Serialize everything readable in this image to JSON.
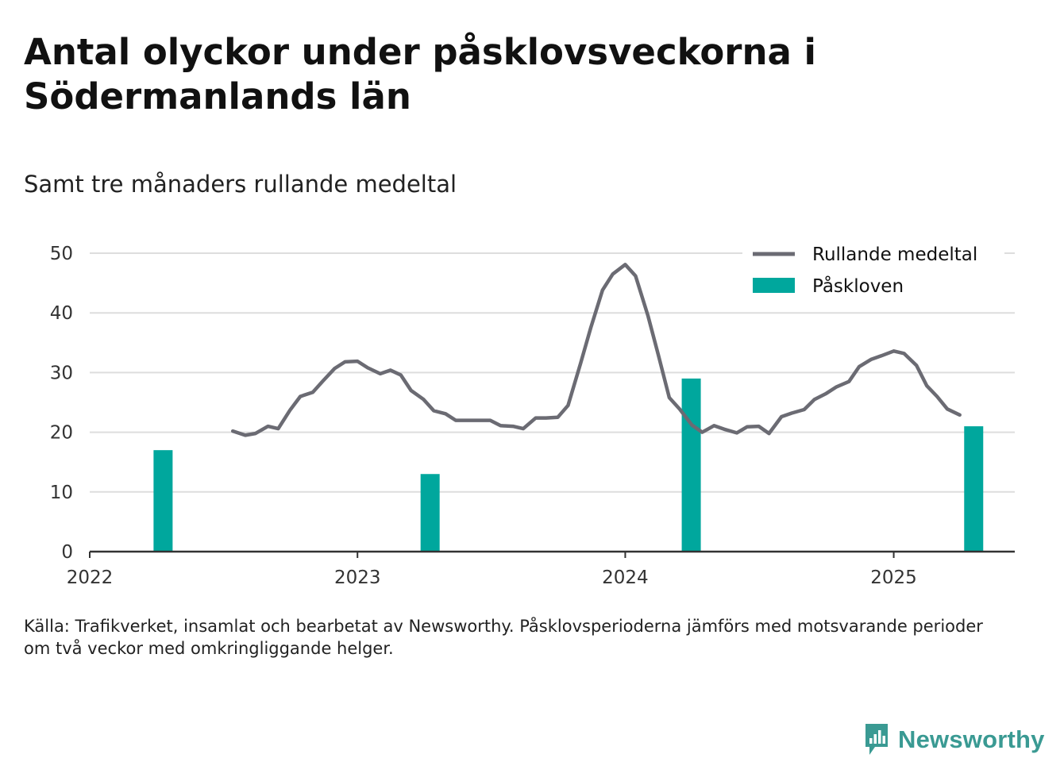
{
  "title": "Antal olyckor under påsklovsveckorna i Södermanlands län",
  "subtitle": "Samt tre månaders rullande medeltal",
  "source_lines": [
    "Källa: Trafikverket, insamlat och bearbetat av Newsworthy. Påsklovsperioderna jämförs med motsvarande perioder",
    "om två veckor med omkringliggande helger."
  ],
  "logo_text": "Newsworthy",
  "colors": {
    "line": "#6b6b73",
    "bar": "#00a79d",
    "grid": "#dddddd",
    "axis": "#333333",
    "logo": "#3a9a93"
  },
  "chart_data": {
    "type": "bar+line",
    "x_axis": {
      "type": "time",
      "range": [
        "2022-01-01",
        "2025-06-15"
      ],
      "ticks": [
        "2022",
        "2023",
        "2024",
        "2025"
      ]
    },
    "y_axis": {
      "range": [
        0,
        50
      ],
      "ticks": [
        0,
        10,
        20,
        30,
        40,
        50
      ]
    },
    "grid": true,
    "legend_position": "top-right",
    "legend": [
      {
        "label": "Rullande medeltal",
        "kind": "line"
      },
      {
        "label": "Påskloven",
        "kind": "bar"
      }
    ],
    "series": [
      {
        "name": "Påskloven",
        "type": "bar",
        "points": [
          {
            "x": "2022-04-11",
            "y": 17
          },
          {
            "x": "2023-04-10",
            "y": 13
          },
          {
            "x": "2024-03-31",
            "y": 29
          },
          {
            "x": "2025-04-20",
            "y": 21
          }
        ]
      },
      {
        "name": "Rullande medeltal",
        "type": "line",
        "points": [
          [
            "2022-07-15",
            20.2
          ],
          [
            "2022-08-01",
            19.5
          ],
          [
            "2022-08-15",
            19.8
          ],
          [
            "2022-09-01",
            21.0
          ],
          [
            "2022-09-15",
            20.6
          ],
          [
            "2022-10-01",
            23.7
          ],
          [
            "2022-10-15",
            26.0
          ],
          [
            "2022-11-01",
            26.7
          ],
          [
            "2022-11-15",
            28.6
          ],
          [
            "2022-12-01",
            30.7
          ],
          [
            "2022-12-15",
            31.8
          ],
          [
            "2023-01-01",
            31.9
          ],
          [
            "2023-01-15",
            30.8
          ],
          [
            "2023-02-01",
            29.8
          ],
          [
            "2023-02-15",
            30.4
          ],
          [
            "2023-03-01",
            29.6
          ],
          [
            "2023-03-15",
            27.0
          ],
          [
            "2023-04-01",
            25.5
          ],
          [
            "2023-04-15",
            23.6
          ],
          [
            "2023-05-01",
            23.1
          ],
          [
            "2023-05-15",
            22.0
          ],
          [
            "2023-06-01",
            22.0
          ],
          [
            "2023-06-15",
            22.0
          ],
          [
            "2023-07-01",
            22.0
          ],
          [
            "2023-07-15",
            21.1
          ],
          [
            "2023-08-01",
            21.0
          ],
          [
            "2023-08-15",
            20.6
          ],
          [
            "2023-09-01",
            22.4
          ],
          [
            "2023-09-15",
            22.4
          ],
          [
            "2023-10-01",
            22.5
          ],
          [
            "2023-10-15",
            24.5
          ],
          [
            "2023-11-01",
            31.5
          ],
          [
            "2023-11-15",
            37.5
          ],
          [
            "2023-12-01",
            43.8
          ],
          [
            "2023-12-15",
            46.5
          ],
          [
            "2024-01-01",
            48.1
          ],
          [
            "2024-01-15",
            46.2
          ],
          [
            "2024-02-01",
            39.5
          ],
          [
            "2024-02-15",
            33.0
          ],
          [
            "2024-03-01",
            25.8
          ],
          [
            "2024-03-15",
            23.9
          ],
          [
            "2024-04-01",
            21.2
          ],
          [
            "2024-04-15",
            20.0
          ],
          [
            "2024-05-01",
            21.1
          ],
          [
            "2024-05-15",
            20.5
          ],
          [
            "2024-06-01",
            19.9
          ],
          [
            "2024-06-15",
            20.9
          ],
          [
            "2024-07-01",
            21.0
          ],
          [
            "2024-07-15",
            19.8
          ],
          [
            "2024-08-01",
            22.6
          ],
          [
            "2024-08-15",
            23.2
          ],
          [
            "2024-09-01",
            23.8
          ],
          [
            "2024-09-15",
            25.5
          ],
          [
            "2024-10-01",
            26.5
          ],
          [
            "2024-10-15",
            27.6
          ],
          [
            "2024-11-01",
            28.5
          ],
          [
            "2024-11-15",
            31.0
          ],
          [
            "2024-12-01",
            32.2
          ],
          [
            "2024-12-15",
            32.8
          ],
          [
            "2025-01-01",
            33.6
          ],
          [
            "2025-01-15",
            33.2
          ],
          [
            "2025-02-01",
            31.2
          ],
          [
            "2025-02-15",
            27.8
          ],
          [
            "2025-03-01",
            26.0
          ],
          [
            "2025-03-15",
            23.9
          ],
          [
            "2025-04-01",
            22.9
          ]
        ]
      }
    ]
  }
}
